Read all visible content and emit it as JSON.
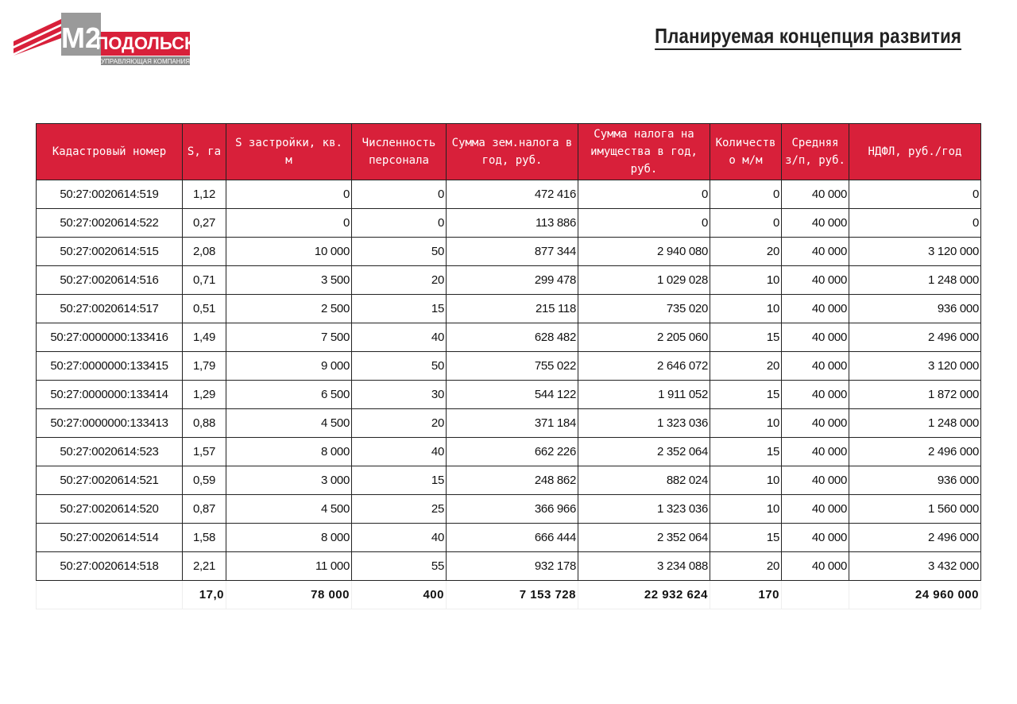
{
  "logo": {
    "mark": "М2",
    "name": "ПОДОЛЬСК",
    "tagline": "УПРАВЛЯЮЩАЯ КОМПАНИЯ"
  },
  "header": {
    "title": "Планируемая концепция развития"
  },
  "table": {
    "columns": [
      "Кадастровый номер",
      "S, га",
      "S застройки, кв. м",
      "Численность персонала",
      "Сумма зем.налога в год, руб.",
      "Сумма налога на имущества в год, руб.",
      "Количеств о м/м",
      "Средняя з/п, руб.",
      "НДФЛ, руб./год"
    ],
    "rows": [
      [
        "50:27:0020614:519",
        "1,12",
        "0",
        "0",
        "472 416",
        "0",
        "0",
        "40 000",
        "0"
      ],
      [
        "50:27:0020614:522",
        "0,27",
        "0",
        "0",
        "113 886",
        "0",
        "0",
        "40 000",
        "0"
      ],
      [
        "50:27:0020614:515",
        "2,08",
        "10 000",
        "50",
        "877 344",
        "2 940 080",
        "20",
        "40 000",
        "3 120 000"
      ],
      [
        "50:27:0020614:516",
        "0,71",
        "3 500",
        "20",
        "299 478",
        "1 029 028",
        "10",
        "40 000",
        "1 248 000"
      ],
      [
        "50:27:0020614:517",
        "0,51",
        "2 500",
        "15",
        "215 118",
        "735 020",
        "10",
        "40 000",
        "936 000"
      ],
      [
        "50:27:0000000:133416",
        "1,49",
        "7 500",
        "40",
        "628 482",
        "2 205 060",
        "15",
        "40 000",
        "2 496 000"
      ],
      [
        "50:27:0000000:133415",
        "1,79",
        "9 000",
        "50",
        "755 022",
        "2 646 072",
        "20",
        "40 000",
        "3 120 000"
      ],
      [
        "50:27:0000000:133414",
        "1,29",
        "6 500",
        "30",
        "544 122",
        "1 911 052",
        "15",
        "40 000",
        "1 872 000"
      ],
      [
        "50:27:0000000:133413",
        "0,88",
        "4 500",
        "20",
        "371 184",
        "1 323 036",
        "10",
        "40 000",
        "1 248 000"
      ],
      [
        "50:27:0020614:523",
        "1,57",
        "8 000",
        "40",
        "662 226",
        "2 352 064",
        "15",
        "40 000",
        "2 496 000"
      ],
      [
        "50:27:0020614:521",
        "0,59",
        "3 000",
        "15",
        "248 862",
        "882 024",
        "10",
        "40 000",
        "936 000"
      ],
      [
        "50:27:0020614:520",
        "0,87",
        "4 500",
        "25",
        "366 966",
        "1 323 036",
        "10",
        "40 000",
        "1 560 000"
      ],
      [
        "50:27:0020614:514",
        "1,58",
        "8 000",
        "40",
        "666 444",
        "2 352 064",
        "15",
        "40 000",
        "2 496 000"
      ],
      [
        "50:27:0020614:518",
        "2,21",
        "11 000",
        "55",
        "932 178",
        "3 234 088",
        "20",
        "40 000",
        "3 432 000"
      ]
    ],
    "totals": [
      "17,0",
      "78 000",
      "400",
      "7 153 728",
      "22 932 624",
      "170",
      "24 960 000"
    ]
  }
}
